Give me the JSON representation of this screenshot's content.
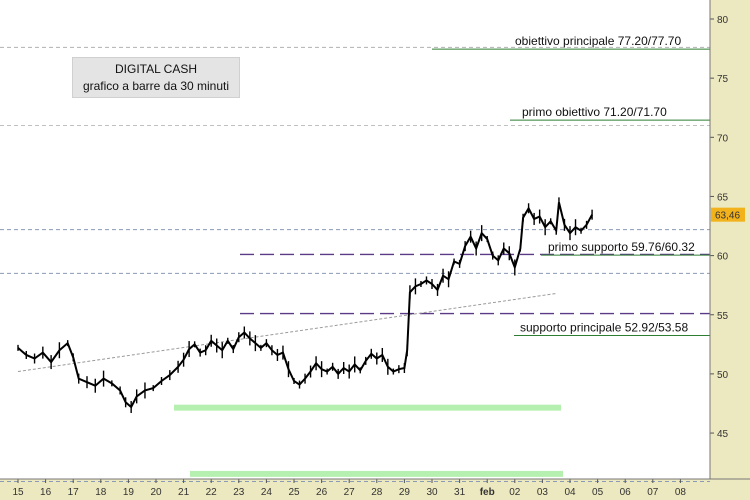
{
  "chart_data": {
    "type": "bar",
    "title": "DIGITAL CASH",
    "subtitle": "grafico a barre da 30 minuti",
    "ylim": [
      41,
      82
    ],
    "yticks": [
      45,
      50,
      55,
      60,
      65,
      70,
      75,
      80
    ],
    "last_price_label": "63,46",
    "last_price": 63.46,
    "x_labels": [
      "15",
      "16",
      "17",
      "18",
      "19",
      "20",
      "21",
      "22",
      "23",
      "24",
      "25",
      "26",
      "27",
      "28",
      "29",
      "30",
      "31",
      "feb",
      "02",
      "03",
      "04",
      "05",
      "06",
      "07",
      "08"
    ],
    "bold_label": "feb",
    "annotations": [
      {
        "text": "obiettivo principale 77.20/77.70",
        "value": 77.45
      },
      {
        "text": "primo obiettivo 71.20/71.70",
        "value": 71.45
      },
      {
        "text": "primo supporto 59.76/60.32",
        "value": 60.04
      },
      {
        "text": "supporto principale 52.92/53.58",
        "value": 53.25
      }
    ],
    "dashed_levels": [
      {
        "value": 77.6,
        "color": "#b0b0b0"
      },
      {
        "value": 71.0,
        "color": "#c0c0c0"
      },
      {
        "value": 62.2,
        "color": "#8a9ab8"
      },
      {
        "value": 58.5,
        "color": "#8a9ab8"
      },
      {
        "value": 40.9,
        "color": "#8a9ab8"
      }
    ],
    "purple_levels": [
      60.1,
      55.1
    ],
    "green_bands": [
      [
        47.0,
        47.4
      ],
      [
        41.3,
        41.8
      ]
    ],
    "trendline": [
      [
        15.0,
        50.2
      ],
      [
        34.5,
        56.8
      ]
    ],
    "price_path": [
      [
        15.0,
        52.2
      ],
      [
        15.3,
        51.6
      ],
      [
        15.6,
        51.3
      ],
      [
        15.9,
        51.8
      ],
      [
        16.2,
        51.0
      ],
      [
        16.5,
        52.0
      ],
      [
        16.8,
        52.6
      ],
      [
        17.0,
        51.4
      ],
      [
        17.2,
        49.6
      ],
      [
        17.5,
        49.3
      ],
      [
        17.8,
        49.0
      ],
      [
        18.1,
        49.6
      ],
      [
        18.4,
        49.2
      ],
      [
        18.7,
        48.6
      ],
      [
        18.9,
        47.6
      ],
      [
        19.1,
        47.2
      ],
      [
        19.3,
        48.1
      ],
      [
        19.6,
        48.6
      ],
      [
        19.9,
        48.8
      ],
      [
        20.2,
        49.4
      ],
      [
        20.5,
        49.9
      ],
      [
        20.8,
        50.6
      ],
      [
        21.0,
        51.2
      ],
      [
        21.2,
        52.1
      ],
      [
        21.4,
        52.5
      ],
      [
        21.6,
        51.8
      ],
      [
        21.8,
        52.0
      ],
      [
        22.0,
        52.8
      ],
      [
        22.2,
        52.4
      ],
      [
        22.4,
        52.0
      ],
      [
        22.6,
        52.8
      ],
      [
        22.8,
        52.1
      ],
      [
        23.0,
        53.1
      ],
      [
        23.2,
        53.5
      ],
      [
        23.4,
        53.0
      ],
      [
        23.6,
        52.6
      ],
      [
        23.8,
        52.2
      ],
      [
        24.0,
        52.6
      ],
      [
        24.2,
        52.0
      ],
      [
        24.4,
        51.6
      ],
      [
        24.6,
        51.8
      ],
      [
        24.8,
        50.4
      ],
      [
        25.0,
        49.4
      ],
      [
        25.2,
        49.1
      ],
      [
        25.4,
        49.6
      ],
      [
        25.6,
        50.2
      ],
      [
        25.8,
        50.9
      ],
      [
        26.0,
        50.4
      ],
      [
        26.2,
        50.2
      ],
      [
        26.4,
        50.6
      ],
      [
        26.6,
        50.0
      ],
      [
        26.8,
        50.5
      ],
      [
        27.0,
        50.2
      ],
      [
        27.2,
        50.8
      ],
      [
        27.4,
        50.3
      ],
      [
        27.6,
        51.1
      ],
      [
        27.8,
        51.7
      ],
      [
        28.0,
        51.3
      ],
      [
        28.2,
        51.6
      ],
      [
        28.4,
        50.6
      ],
      [
        28.6,
        50.2
      ],
      [
        28.8,
        50.4
      ],
      [
        29.0,
        50.5
      ],
      [
        29.1,
        52.0
      ],
      [
        29.2,
        56.9
      ],
      [
        29.4,
        57.4
      ],
      [
        29.6,
        57.6
      ],
      [
        29.8,
        57.9
      ],
      [
        30.0,
        57.6
      ],
      [
        30.2,
        57.1
      ],
      [
        30.4,
        58.3
      ],
      [
        30.6,
        58.0
      ],
      [
        30.8,
        59.5
      ],
      [
        31.0,
        59.3
      ],
      [
        31.2,
        60.8
      ],
      [
        31.4,
        61.6
      ],
      [
        31.6,
        60.6
      ],
      [
        31.8,
        61.9
      ],
      [
        32.0,
        61.4
      ],
      [
        32.2,
        60.0
      ],
      [
        32.4,
        59.6
      ],
      [
        32.6,
        60.6
      ],
      [
        32.8,
        60.2
      ],
      [
        33.0,
        59.0
      ],
      [
        33.2,
        60.6
      ],
      [
        33.3,
        63.2
      ],
      [
        33.5,
        64.0
      ],
      [
        33.7,
        63.1
      ],
      [
        33.9,
        63.3
      ],
      [
        34.1,
        62.4
      ],
      [
        34.3,
        62.9
      ],
      [
        34.5,
        62.1
      ],
      [
        34.6,
        64.5
      ],
      [
        34.8,
        62.6
      ],
      [
        35.0,
        61.9
      ],
      [
        35.2,
        62.4
      ],
      [
        35.4,
        62.1
      ],
      [
        35.6,
        62.6
      ],
      [
        35.8,
        63.46
      ]
    ]
  }
}
